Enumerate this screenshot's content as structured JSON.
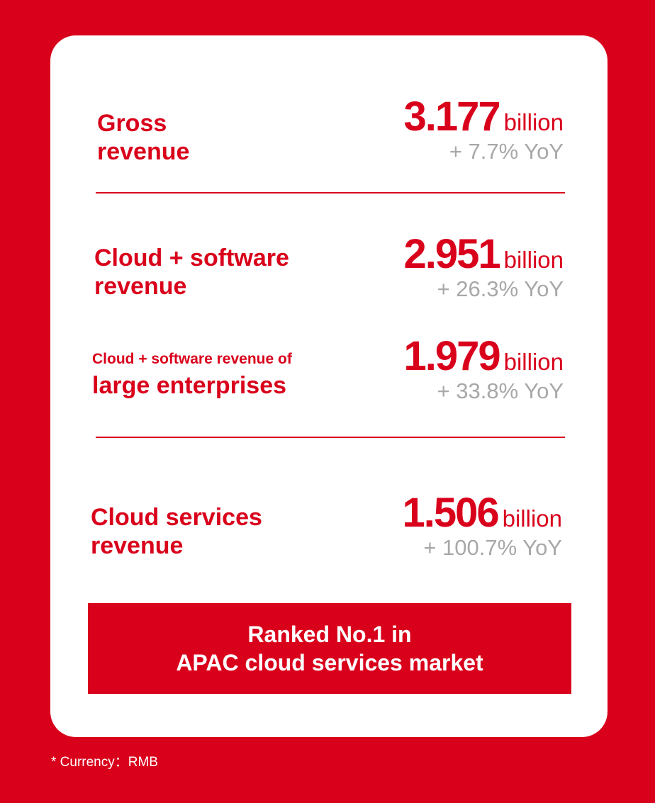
{
  "metrics": [
    {
      "label_lines": [
        "Gross",
        "revenue"
      ],
      "value": "3.177",
      "unit": "billion",
      "yoy": "+ 7.7% YoY"
    },
    {
      "label_lines": [
        "Cloud + software",
        "revenue"
      ],
      "value": "2.951",
      "unit": "billion",
      "yoy": "+ 26.3% YoY"
    },
    {
      "label_small": "Cloud + software revenue of",
      "label_large": "large enterprises",
      "value": "1.979",
      "unit": "billion",
      "yoy": "+ 33.8% YoY"
    },
    {
      "label_lines": [
        "Cloud services",
        "revenue"
      ],
      "value": "1.506",
      "unit": "billion",
      "yoy": "+ 100.7% YoY"
    }
  ],
  "banner": {
    "line1": "Ranked No.1 in",
    "line2": "APAC cloud services market"
  },
  "footnote": "* Currency：RMB",
  "colors": {
    "brand_red": "#d9001b",
    "card_bg": "#ffffff",
    "yoy_gray": "#a8a8a8"
  }
}
